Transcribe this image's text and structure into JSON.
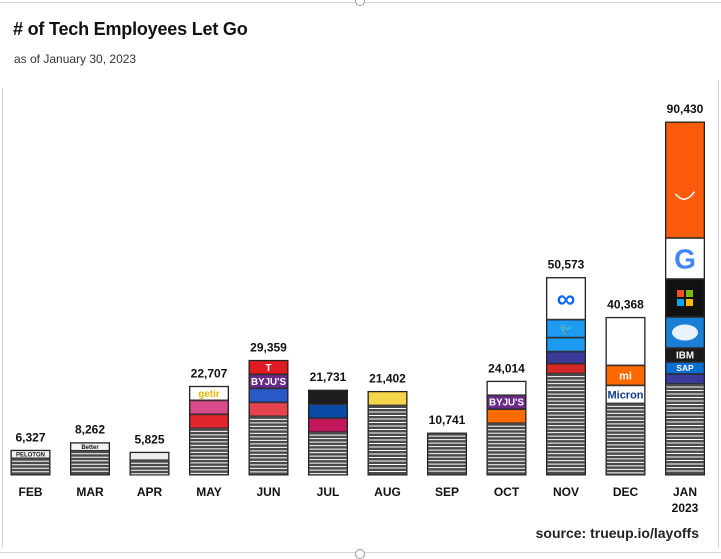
{
  "title": "# of Tech Employees Let Go",
  "subtitle": "as of January 30, 2023",
  "source": "source: trueup.io/layoffs",
  "chart_data": {
    "type": "bar",
    "categories": [
      "FEB",
      "MAR",
      "APR",
      "MAY",
      "JUN",
      "JUL",
      "AUG",
      "SEP",
      "OCT",
      "NOV",
      "DEC",
      "JAN 2023"
    ],
    "values": [
      6327,
      8262,
      5825,
      22707,
      29359,
      21731,
      21402,
      10741,
      24014,
      50573,
      40368,
      90430
    ],
    "value_labels": [
      "6,327",
      "8,262",
      "5,825",
      "22,707",
      "29,359",
      "21,731",
      "21,402",
      "10,741",
      "24,014",
      "50,573",
      "40,368",
      "90,430"
    ],
    "ylim": [
      0,
      90430
    ],
    "grid": false,
    "legend": "none",
    "bar_fill_color": "#4a4a4a",
    "bar_stripe_color": "#ffffff",
    "logo_segments": {
      "FEB": [
        {
          "name": "peloton",
          "text": "PELOTON",
          "bg": "#f2f2f2",
          "fg": "#222222"
        }
      ],
      "MAR": [
        {
          "name": "better",
          "text": "Better",
          "bg": "#f4f4f4",
          "fg": "#111111"
        }
      ],
      "APR": [
        {
          "name": "logo",
          "text": "",
          "bg": "#eeeeee",
          "fg": "#111111"
        }
      ],
      "MAY": [
        {
          "name": "getir",
          "text": "getir",
          "bg": "#ffffff",
          "fg": "#e4b400"
        },
        {
          "name": "logo",
          "text": "",
          "bg": "#d94a8c",
          "fg": "#ffffff"
        },
        {
          "name": "logo",
          "text": "",
          "bg": "#e3262c",
          "fg": "#ffffff"
        }
      ],
      "JUN": [
        {
          "name": "tesla",
          "text": "T",
          "bg": "#e01b22",
          "fg": "#ffffff"
        },
        {
          "name": "byjus",
          "text": "BYJU'S",
          "bg": "#6a2a8a",
          "fg": "#ffffff"
        },
        {
          "name": "logo",
          "text": "",
          "bg": "#2b58c7",
          "fg": "#ffffff"
        },
        {
          "name": "logo",
          "text": "",
          "bg": "#e6434f",
          "fg": "#ffffff"
        }
      ],
      "JUL": [
        {
          "name": "logo",
          "text": "",
          "bg": "#1d1d1d",
          "fg": "#ffffff"
        },
        {
          "name": "logo",
          "text": "",
          "bg": "#0b4ba8",
          "fg": "#ffffff"
        },
        {
          "name": "logo",
          "text": "",
          "bg": "#c2185b",
          "fg": "#ffffff"
        }
      ],
      "AUG": [
        {
          "name": "logo",
          "text": "",
          "bg": "#f5d64a",
          "fg": "#111111"
        }
      ],
      "SEP": [],
      "OCT": [
        {
          "name": "logo",
          "text": "",
          "bg": "#ffffff",
          "fg": "#2e8b57"
        },
        {
          "name": "byjus",
          "text": "BYJU'S",
          "bg": "#6a2a8a",
          "fg": "#ffffff"
        },
        {
          "name": "logo",
          "text": "",
          "bg": "#ff6d00",
          "fg": "#ffffff"
        }
      ],
      "NOV": [
        {
          "name": "meta",
          "text": "∞",
          "bg": "#ffffff",
          "fg": "#0866ff"
        },
        {
          "name": "twitter",
          "text": "🐦",
          "bg": "#1d9bf0",
          "fg": "#ffffff"
        },
        {
          "name": "logo",
          "text": "",
          "bg": "#1d9bf0",
          "fg": "#ffffff"
        },
        {
          "name": "logo",
          "text": "",
          "bg": "#3b3b9a",
          "fg": "#ffffff"
        },
        {
          "name": "logo",
          "text": "",
          "bg": "#d62828",
          "fg": "#ffffff"
        }
      ],
      "DEC": [
        {
          "name": "logo",
          "text": "",
          "bg": "#ffffff",
          "fg": "#1e4f9c"
        },
        {
          "name": "xiaomi",
          "text": "mi",
          "bg": "#ff6900",
          "fg": "#ffffff"
        },
        {
          "name": "micron",
          "text": "Micron",
          "bg": "#ffffff",
          "fg": "#0b3b8c"
        }
      ],
      "JAN 2023": [
        {
          "name": "amazon",
          "text": "",
          "bg": "#fb5b0a",
          "fg": "#ffffff"
        },
        {
          "name": "google",
          "text": "G",
          "bg": "#ffffff",
          "fg": "#4285f4"
        },
        {
          "name": "microsoft",
          "text": "",
          "bg": "#111111",
          "fg": "#ffffff"
        },
        {
          "name": "salesforce",
          "text": "",
          "bg": "#1b7fd8",
          "fg": "#ffffff"
        },
        {
          "name": "ibm",
          "text": "IBM",
          "bg": "#1a1a1a",
          "fg": "#ffffff"
        },
        {
          "name": "sap",
          "text": "SAP",
          "bg": "#0a6ed1",
          "fg": "#ffffff"
        },
        {
          "name": "logo",
          "text": "",
          "bg": "#3b3b9a",
          "fg": "#ffffff"
        }
      ]
    }
  }
}
